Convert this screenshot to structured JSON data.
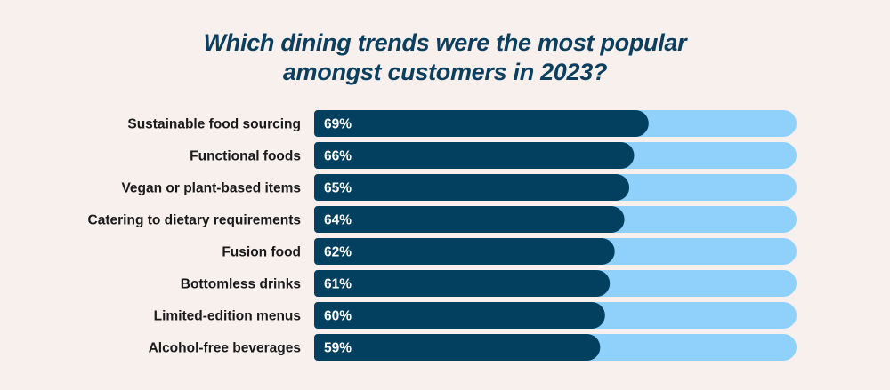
{
  "chart_data": {
    "type": "bar",
    "orientation": "horizontal",
    "title": "Which dining trends were the most popular amongst customers in 2023?",
    "title_lines": [
      "Which dining trends were the most popular",
      "amongst customers in 2023?"
    ],
    "categories": [
      "Sustainable food sourcing",
      "Functional foods",
      "Vegan or plant-based items",
      "Catering to dietary requirements",
      "Fusion food",
      "Bottomless drinks",
      "Limited-edition menus",
      "Alcohol-free beverages"
    ],
    "values": [
      69,
      66,
      65,
      64,
      62,
      61,
      60,
      59
    ],
    "value_labels": [
      "69%",
      "66%",
      "65%",
      "64%",
      "62%",
      "61%",
      "60%",
      "59%"
    ],
    "xlim": [
      0,
      100
    ],
    "unit": "%",
    "grid": false,
    "colors": {
      "bar": "#033f5f",
      "track": "#8fd1fb",
      "background": "#f7f0ed",
      "title": "#0c3e5e"
    }
  }
}
